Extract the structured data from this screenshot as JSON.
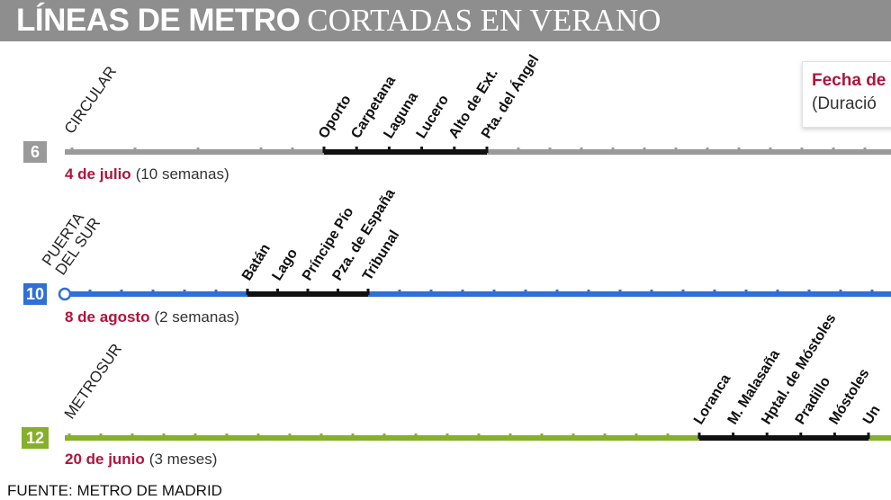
{
  "header": {
    "title_bold": "LÍNEAS DE METRO",
    "title_light": "CORTADAS EN VERANO"
  },
  "legend": {
    "date": "Fecha de",
    "duration": "(Duració"
  },
  "footer": {
    "source": "FUENTE: METRO DE MADRID"
  },
  "colors": {
    "header_bg": "#8e8e8e",
    "date_red": "#b0143c",
    "line6": "#9a9a9a",
    "line10": "#2f6fd6",
    "line12": "#86b02a",
    "closed": "#111111"
  },
  "lines": [
    {
      "id": "line6",
      "number": "6",
      "name_lines": [
        "CIRCULAR"
      ],
      "color": "#9a9a9a",
      "date": "4 de julio",
      "duration": "(10 semanas)",
      "closed_stations": [
        "Oporto",
        "Carpetana",
        "Laguna",
        "Lucero",
        "Alto de Ext.",
        "Pta. del Ángel"
      ]
    },
    {
      "id": "line10",
      "number": "10",
      "name_lines": [
        "PUERTA",
        "DEL SUR"
      ],
      "color": "#2f6fd6",
      "date": "8 de agosto",
      "duration": "(2 semanas)",
      "closed_stations": [
        "Batán",
        "Lago",
        "Príncipe Pío",
        "Pza. de España",
        "Tribunal"
      ]
    },
    {
      "id": "line12",
      "number": "12",
      "name_lines": [
        "METROSUR"
      ],
      "color": "#86b02a",
      "date": "20 de junio",
      "duration": "(3 meses)",
      "closed_stations": [
        "Loranca",
        "M. Malasaña",
        "Hptal. de Móstoles",
        "Pradillo",
        "Móstoles",
        "Un"
      ]
    }
  ]
}
